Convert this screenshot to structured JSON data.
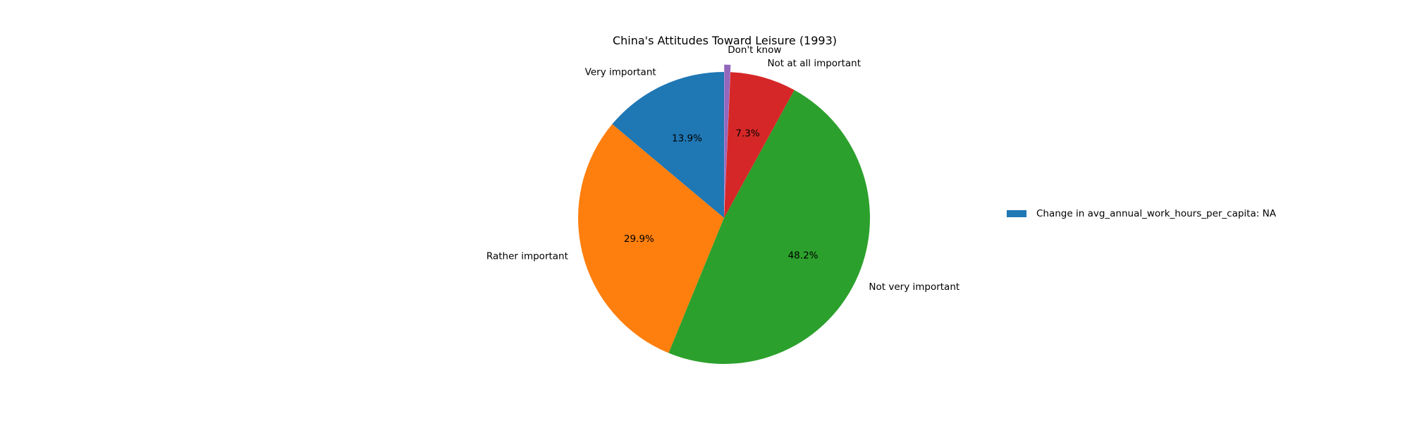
{
  "chart_data": {
    "type": "pie",
    "title": "China's Attitudes Toward Leisure (1993)",
    "slices": [
      {
        "label": "Very important",
        "value": 13.9,
        "pct_label": "13.9%",
        "color": "#1f77b4"
      },
      {
        "label": "Rather important",
        "value": 29.9,
        "pct_label": "29.9%",
        "color": "#ff7f0e"
      },
      {
        "label": "Not very important",
        "value": 48.2,
        "pct_label": "48.2%",
        "color": "#2ca02c"
      },
      {
        "label": "Not at all important",
        "value": 7.3,
        "pct_label": "7.3%",
        "color": "#d62728"
      },
      {
        "label": "Don't know",
        "value": 0.7,
        "pct_label": "",
        "color": "#9467bd",
        "exploded": true
      }
    ],
    "legend": {
      "placement": "right",
      "entries": [
        {
          "label": "Change in avg_annual_work_hours_per_capita: NA",
          "color": "#1f77b4"
        }
      ]
    }
  }
}
